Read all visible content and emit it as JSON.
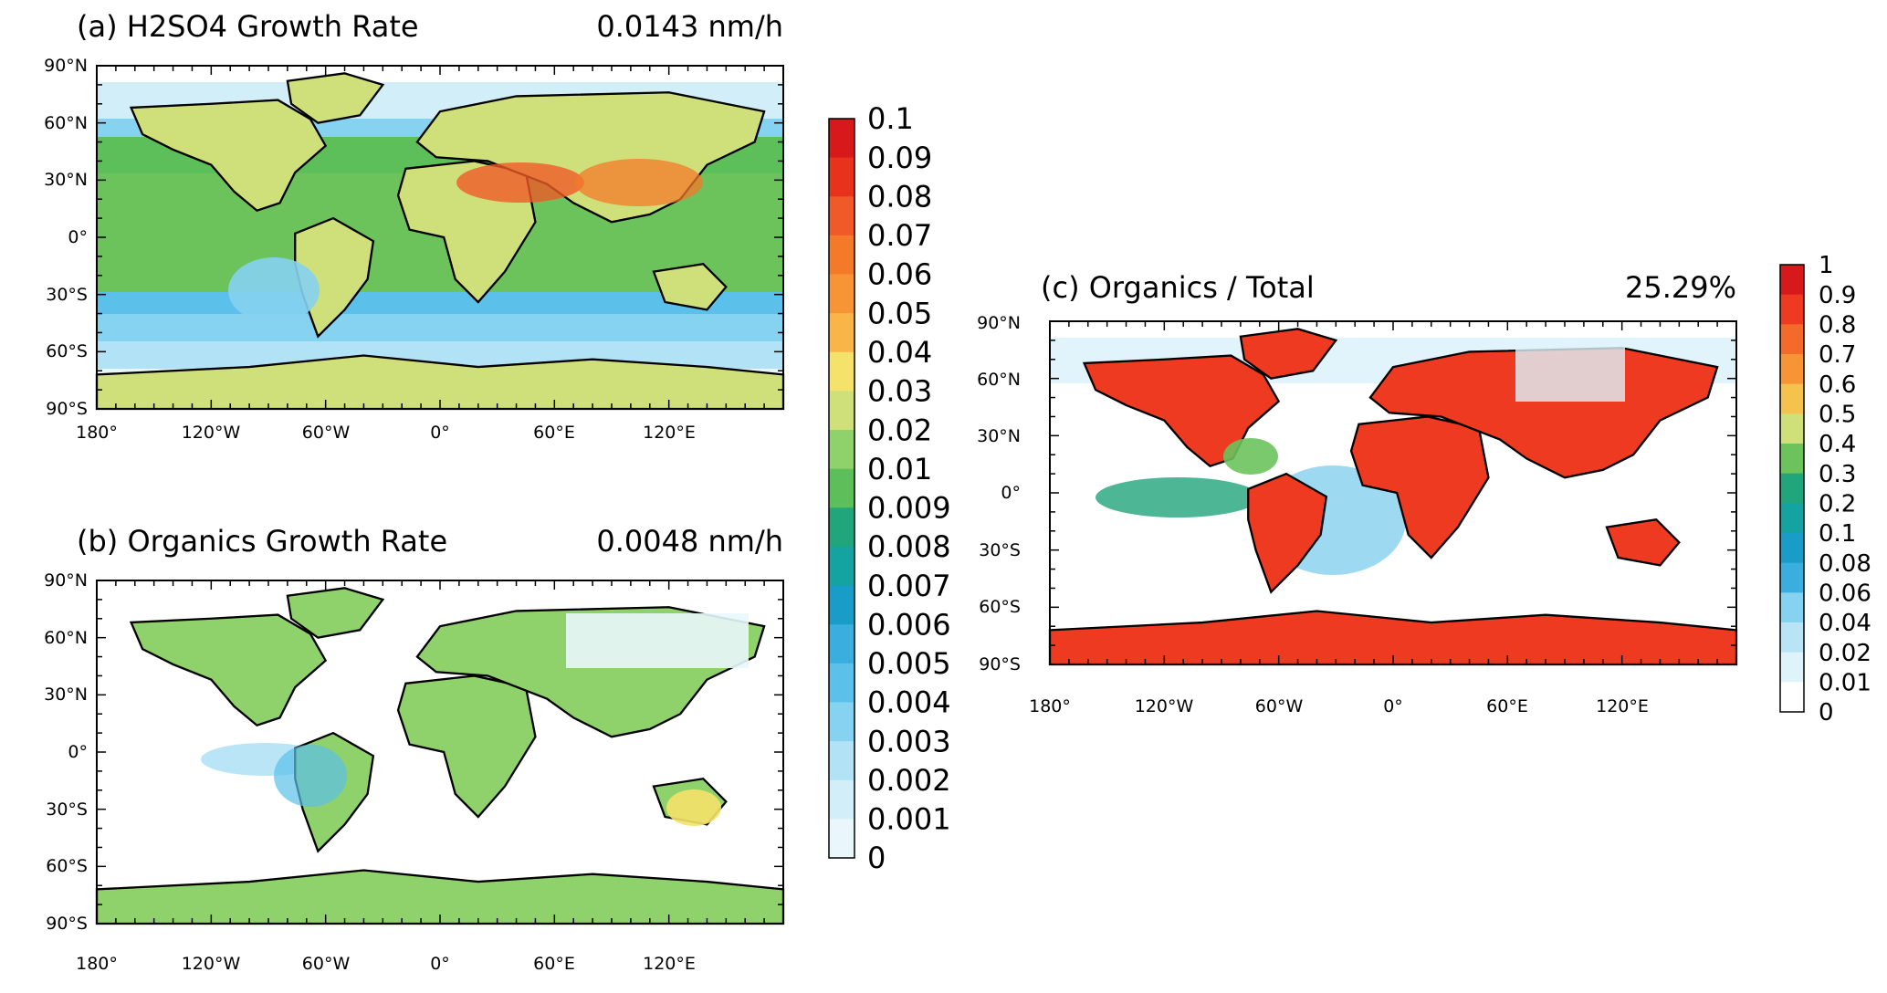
{
  "panels": [
    {
      "id": "a",
      "title": "(a) H2SO4 Growth Rate",
      "value": "0.0143 nm/h",
      "lat_labels": [
        "90°N",
        "60°N",
        "30°N",
        "0°",
        "30°S",
        "60°S",
        "90°S"
      ],
      "lon_labels": [
        "180°",
        "120°W",
        "60°W",
        "0°",
        "60°E",
        "120°E"
      ]
    },
    {
      "id": "b",
      "title": "(b) Organics Growth Rate",
      "value": "0.0048 nm/h",
      "lat_labels": [
        "90°N",
        "60°N",
        "30°N",
        "0°",
        "30°S",
        "60°S",
        "90°S"
      ],
      "lon_labels": [
        "180°",
        "120°W",
        "60°W",
        "0°",
        "60°E",
        "120°E"
      ]
    },
    {
      "id": "c",
      "title": "(c) Organics / Total",
      "value": "25.29%",
      "lat_labels": [
        "90°N",
        "60°N",
        "30°N",
        "0°",
        "30°S",
        "60°S",
        "90°S"
      ],
      "lon_labels": [
        "180°",
        "120°W",
        "60°W",
        "0°",
        "60°E",
        "120°E"
      ]
    }
  ],
  "colorbar_growth": {
    "labels": [
      "0.1",
      "0.09",
      "0.08",
      "0.07",
      "0.06",
      "0.05",
      "0.04",
      "0.03",
      "0.02",
      "0.01",
      "0.009",
      "0.008",
      "0.007",
      "0.006",
      "0.005",
      "0.004",
      "0.003",
      "0.002",
      "0.001",
      "0"
    ]
  },
  "colorbar_fraction": {
    "labels": [
      "1",
      "0.9",
      "0.8",
      "0.7",
      "0.6",
      "0.5",
      "0.4",
      "0.3",
      "0.2",
      "0.1",
      "0.08",
      "0.06",
      "0.04",
      "0.02",
      "0.01",
      "0"
    ]
  },
  "colors": {
    "growth_scale": [
      "#d7191c",
      "#e8321c",
      "#ef5a28",
      "#f47a2a",
      "#f79536",
      "#f9b548",
      "#f5e26a",
      "#cfe07a",
      "#8fd16a",
      "#5cbf5a",
      "#21a57a",
      "#14a3a1",
      "#1a9cc9",
      "#3aaede",
      "#5bc1ea",
      "#86d2f1",
      "#b1e2f6",
      "#d1eef9",
      "#e9f7fc",
      "#ffffff"
    ],
    "fraction_scale": [
      "#d7191c",
      "#ef3a22",
      "#f46a2a",
      "#f79536",
      "#f5c24e",
      "#cfe07a",
      "#6cc35c",
      "#21a57a",
      "#14a3a1",
      "#1a9cc9",
      "#3aaede",
      "#86d2f1",
      "#b8e4f6",
      "#dff3fb",
      "#ffffff"
    ]
  }
}
